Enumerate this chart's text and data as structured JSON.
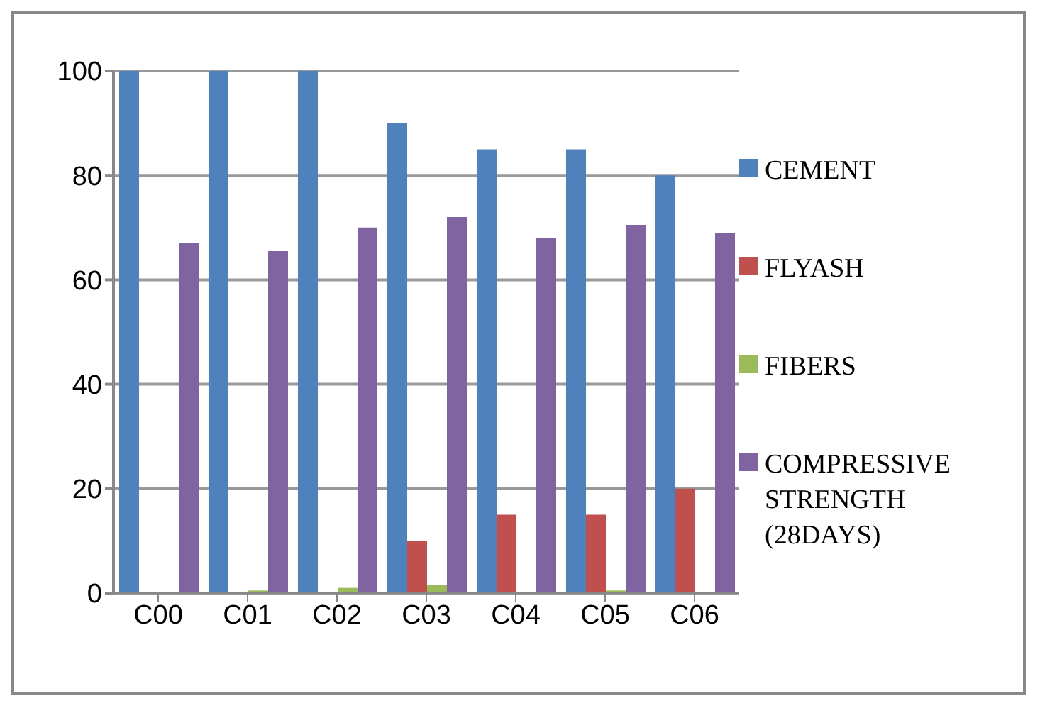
{
  "chart_data": {
    "type": "bar",
    "categories": [
      "C00",
      "C01",
      "C02",
      "C03",
      "C04",
      "C05",
      "C06"
    ],
    "series": [
      {
        "name": "CEMENT",
        "color": "#4f81bd",
        "values": [
          100,
          100,
          100,
          90,
          85,
          85,
          80
        ]
      },
      {
        "name": "FLYASH",
        "color": "#c0504d",
        "values": [
          0,
          0,
          0,
          10,
          15,
          15,
          20
        ]
      },
      {
        "name": "FIBERS",
        "color": "#9bbb59",
        "values": [
          0,
          0.5,
          1,
          1.5,
          0,
          0.5,
          0
        ]
      },
      {
        "name": "COMPRESSIVE STRENGTH (28DAYS)",
        "color": "#8064a2",
        "values": [
          67,
          65.5,
          70,
          72,
          68,
          70.5,
          69
        ]
      }
    ],
    "ylim": [
      0,
      100
    ],
    "yticks": [
      0,
      20,
      40,
      60,
      80,
      100
    ],
    "grid": "y",
    "legend": "right"
  }
}
